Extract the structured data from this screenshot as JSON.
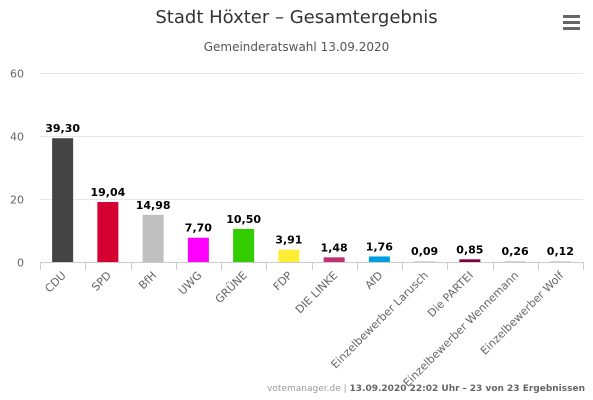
{
  "chart_data": {
    "type": "bar",
    "title": "Stadt Höxter – Gesamtergebnis",
    "subtitle": "Gemeinderatswahl 13.09.2020",
    "categories": [
      "CDU",
      "SPD",
      "BfH",
      "UWG",
      "GRÜNE",
      "FDP",
      "DIE LINKE",
      "AfD",
      "Einzelbewerber Larusch",
      "Die PARTEI",
      "Einzelbewerber Wennemann",
      "Einzelbewerber Wolf"
    ],
    "values": [
      39.3,
      19.04,
      14.98,
      7.7,
      10.5,
      3.91,
      1.48,
      1.76,
      0.09,
      0.85,
      0.26,
      0.12
    ],
    "value_labels": [
      "39,30",
      "19,04",
      "14,98",
      "7,70",
      "10,50",
      "3,91",
      "1,48",
      "1,76",
      "0,09",
      "0,85",
      "0,26",
      "0,12"
    ],
    "colors": [
      "#444444",
      "#d50032",
      "#c0c0c0",
      "#ff00ff",
      "#33cc00",
      "#ffed35",
      "#be3075",
      "#009ee0",
      "#cccccc",
      "#800040",
      "#cccccc",
      "#cccccc"
    ],
    "ylim": [
      0,
      60
    ],
    "yticks": [
      0,
      20,
      40,
      60
    ],
    "ytick_labels": [
      "0",
      "20",
      "40",
      "60"
    ],
    "grid": true,
    "xlabel": "",
    "ylabel": ""
  },
  "footer": {
    "source": "votemanager.de",
    "separator": "|",
    "timestamp": "13.09.2020 22:02 Uhr",
    "dash": "–",
    "count": "23 von 23 Ergebnissen"
  },
  "icons": {
    "menu": "hamburger-menu-icon"
  }
}
